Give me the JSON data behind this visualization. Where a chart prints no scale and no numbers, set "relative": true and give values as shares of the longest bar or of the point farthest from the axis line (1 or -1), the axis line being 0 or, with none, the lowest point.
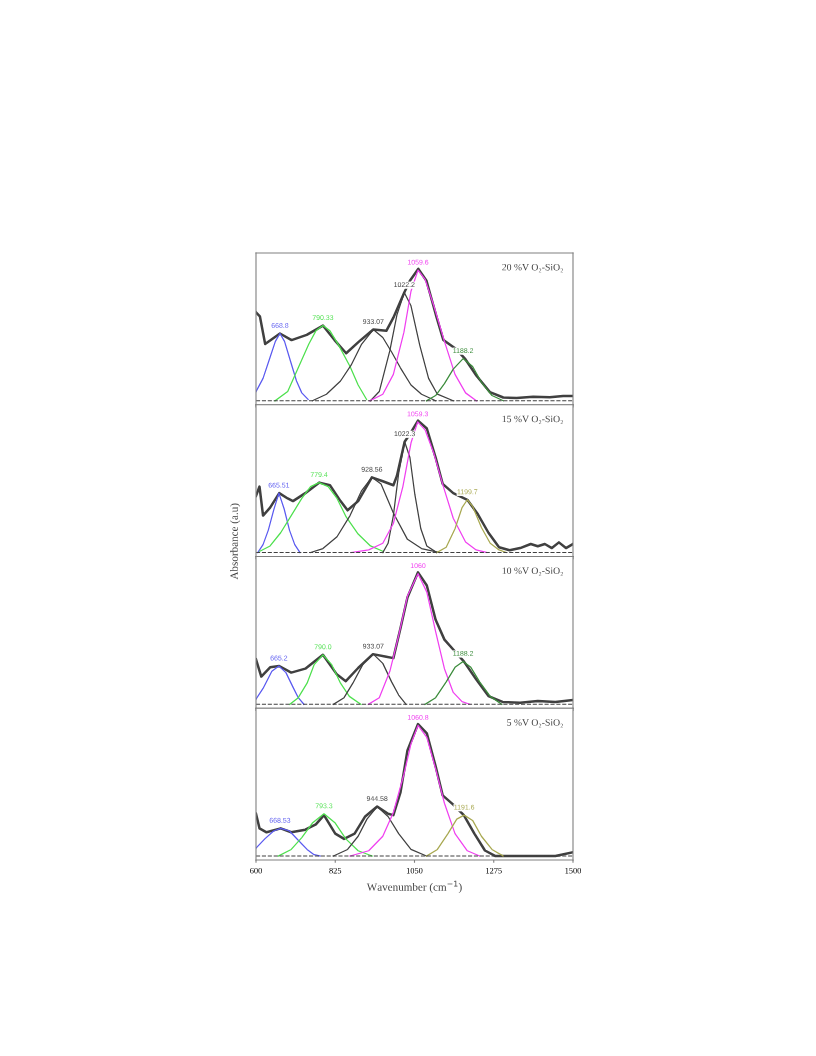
{
  "chart_data": [
    {
      "type": "line",
      "title": "20 %V O₂-SiO₂",
      "relative": true,
      "xlim": [
        600,
        1500
      ],
      "xticks": [
        600,
        825,
        1050,
        1275,
        1500
      ],
      "tick_labels": false,
      "ref_lines": [
        {
          "axis": "y",
          "value": 0,
          "color": "#404040",
          "line_style": "dashed"
        }
      ],
      "series": [
        {
          "color": "#404040",
          "x": [
            600,
            611,
            626,
            668,
            701,
            744,
            790,
            823,
            856,
            893,
            933,
            970,
            990,
            1021,
            1037,
            1061,
            1084,
            1113,
            1132,
            1169,
            1193,
            1226,
            1264,
            1302,
            1340,
            1387,
            1434,
            1472,
            1500
          ],
          "values": [
            0.67,
            0.64,
            0.43,
            0.51,
            0.46,
            0.5,
            0.57,
            0.46,
            0.36,
            0.45,
            0.54,
            0.53,
            0.63,
            0.82,
            0.91,
            1.0,
            0.91,
            0.63,
            0.46,
            0.39,
            0.32,
            0.19,
            0.066,
            0.025,
            0.022,
            0.03,
            0.027,
            0.037,
            0.037
          ]
        },
        {
          "color": "#5a5af0",
          "x": [
            600,
            620,
            640,
            655,
            668,
            681,
            698,
            715,
            730,
            748
          ],
          "values": [
            0.07,
            0.17,
            0.33,
            0.45,
            0.51,
            0.45,
            0.3,
            0.15,
            0.06,
            0.01
          ]
        },
        {
          "color": "#4ee04e",
          "x": [
            654,
            690,
            725,
            750,
            770,
            790,
            810,
            835,
            867,
            890,
            914
          ],
          "values": [
            0.0,
            0.07,
            0.28,
            0.43,
            0.53,
            0.57,
            0.53,
            0.42,
            0.26,
            0.12,
            0.01
          ]
        },
        {
          "color": "#404040",
          "x": [
            760,
            800,
            840,
            870,
            900,
            933,
            960,
            985,
            1010,
            1040,
            1070,
            1110
          ],
          "values": [
            0.0,
            0.05,
            0.15,
            0.27,
            0.43,
            0.54,
            0.48,
            0.37,
            0.25,
            0.12,
            0.05,
            0.0
          ]
        },
        {
          "color": "#404040",
          "x": [
            925,
            950,
            980,
            1000,
            1021,
            1040,
            1065,
            1090,
            1115,
            1160
          ],
          "values": [
            0.0,
            0.07,
            0.38,
            0.65,
            0.82,
            0.72,
            0.42,
            0.17,
            0.05,
            0.0
          ]
        },
        {
          "color": "#f040f0",
          "x": [
            923,
            960,
            990,
            1020,
            1040,
            1060,
            1080,
            1105,
            1135,
            1165,
            1195,
            1226
          ],
          "values": [
            0.0,
            0.05,
            0.2,
            0.52,
            0.83,
            0.99,
            0.92,
            0.72,
            0.45,
            0.2,
            0.06,
            0.0
          ]
        },
        {
          "color": "#3c8c3c",
          "x": [
            1084,
            1110,
            1135,
            1160,
            1188,
            1215,
            1240,
            1270,
            1302
          ],
          "values": [
            0.0,
            0.04,
            0.13,
            0.24,
            0.32,
            0.26,
            0.14,
            0.04,
            0.0
          ]
        }
      ],
      "annotations": [
        {
          "text": "668.8",
          "x": 668,
          "y": 0.51
        },
        {
          "text": "790.33",
          "x": 790,
          "y": 0.57
        },
        {
          "text": "933.07",
          "x": 933,
          "y": 0.54
        },
        {
          "text": "1022.2",
          "x": 1021,
          "y": 0.82
        },
        {
          "text": "1059.6",
          "x": 1060,
          "y": 0.99
        },
        {
          "text": "1188.2",
          "x": 1188,
          "y": 0.32
        }
      ]
    },
    {
      "type": "line",
      "title": "15 %V O₂-SiO₂",
      "ylabel": "Absorbance (a.u)",
      "relative": true,
      "xlim": [
        600,
        1500
      ],
      "xticks": [
        600,
        825,
        1050,
        1275,
        1500
      ],
      "tick_labels": false,
      "ref_lines": [
        {
          "axis": "y",
          "value": 0,
          "color": "#404040",
          "line_style": "dashed"
        }
      ],
      "series": [
        {
          "color": "#404040",
          "x": [
            600,
            610,
            620,
            640,
            666,
            690,
            705,
            740,
            780,
            810,
            840,
            860,
            890,
            929,
            960,
            990,
            1000,
            1022,
            1040,
            1060,
            1085,
            1110,
            1130,
            1160,
            1200,
            1230,
            1260,
            1290,
            1320,
            1350,
            1380,
            1400,
            1420,
            1440,
            1460,
            1480,
            1500
          ],
          "values": [
            0.43,
            0.5,
            0.28,
            0.34,
            0.45,
            0.41,
            0.39,
            0.45,
            0.53,
            0.51,
            0.39,
            0.32,
            0.39,
            0.57,
            0.54,
            0.51,
            0.58,
            0.84,
            0.91,
            1.0,
            0.94,
            0.72,
            0.52,
            0.45,
            0.4,
            0.29,
            0.15,
            0.04,
            0.017,
            0.034,
            0.065,
            0.048,
            0.065,
            0.034,
            0.077,
            0.034,
            0.065
          ]
        },
        {
          "color": "#5a5af0",
          "x": [
            605,
            620,
            635,
            650,
            665,
            680,
            695,
            710,
            725
          ],
          "values": [
            0.0,
            0.06,
            0.17,
            0.32,
            0.45,
            0.33,
            0.17,
            0.06,
            0.0
          ]
        },
        {
          "color": "#4ee04e",
          "x": [
            611,
            640,
            670,
            700,
            730,
            755,
            779,
            805,
            830,
            856,
            890,
            925,
            960
          ],
          "values": [
            0.01,
            0.05,
            0.15,
            0.28,
            0.41,
            0.5,
            0.53,
            0.5,
            0.41,
            0.27,
            0.14,
            0.05,
            0.01
          ]
        },
        {
          "color": "#404040",
          "x": [
            755,
            790,
            830,
            867,
            900,
            929,
            955,
            990,
            1030,
            1070,
            1120
          ],
          "values": [
            0.0,
            0.03,
            0.12,
            0.28,
            0.47,
            0.57,
            0.52,
            0.3,
            0.1,
            0.03,
            0.0
          ]
        },
        {
          "color": "#404040",
          "x": [
            960,
            975,
            990,
            1005,
            1022,
            1037,
            1051,
            1068,
            1085,
            1113
          ],
          "values": [
            0.0,
            0.07,
            0.28,
            0.6,
            0.84,
            0.72,
            0.44,
            0.18,
            0.05,
            0.0
          ]
        },
        {
          "color": "#f040f0",
          "x": [
            870,
            920,
            960,
            990,
            1017,
            1040,
            1059,
            1080,
            1105,
            1132,
            1160,
            1195,
            1225,
            1255
          ],
          "values": [
            0.0,
            0.02,
            0.07,
            0.22,
            0.5,
            0.83,
            0.99,
            0.93,
            0.75,
            0.5,
            0.26,
            0.08,
            0.02,
            0.0
          ]
        },
        {
          "color": "#a8a850",
          "x": [
            1113,
            1140,
            1165,
            1185,
            1200,
            1215,
            1240,
            1265,
            1290,
            1311
          ],
          "values": [
            0.0,
            0.04,
            0.18,
            0.34,
            0.4,
            0.35,
            0.19,
            0.07,
            0.02,
            0.0
          ]
        }
      ],
      "annotations": [
        {
          "text": "665.51",
          "x": 665,
          "y": 0.45
        },
        {
          "text": "779.4",
          "x": 779,
          "y": 0.53
        },
        {
          "text": "928.56",
          "x": 929,
          "y": 0.57
        },
        {
          "text": "1022.3",
          "x": 1022,
          "y": 0.84
        },
        {
          "text": "1059.3",
          "x": 1059,
          "y": 0.99
        },
        {
          "text": "1199.7",
          "x": 1200,
          "y": 0.4
        }
      ]
    },
    {
      "type": "line",
      "title": "10 %V O₂-SiO₂",
      "relative": true,
      "xlim": [
        600,
        1500
      ],
      "xticks": [
        600,
        825,
        1050,
        1275,
        1500
      ],
      "tick_labels": false,
      "ref_lines": [
        {
          "axis": "y",
          "value": 0,
          "color": "#404040",
          "line_style": "dashed"
        }
      ],
      "series": [
        {
          "color": "#404040",
          "x": [
            600,
            615,
            640,
            666,
            700,
            740,
            790,
            830,
            855,
            890,
            932,
            970,
            990,
            1010,
            1030,
            1060,
            1085,
            1110,
            1135,
            1165,
            1190,
            1225,
            1260,
            1300,
            1350,
            1400,
            1450,
            1500
          ],
          "values": [
            0.34,
            0.21,
            0.28,
            0.29,
            0.24,
            0.27,
            0.375,
            0.225,
            0.175,
            0.275,
            0.38,
            0.36,
            0.35,
            0.575,
            0.81,
            1.0,
            0.9,
            0.64,
            0.49,
            0.4,
            0.325,
            0.19,
            0.0625,
            0.018,
            0.0125,
            0.025,
            0.018,
            0.032
          ]
        },
        {
          "color": "#5a5af0",
          "x": [
            600,
            620,
            645,
            665,
            685,
            705,
            720,
            736
          ],
          "values": [
            0.04,
            0.12,
            0.25,
            0.29,
            0.24,
            0.13,
            0.05,
            0.0
          ]
        },
        {
          "color": "#4ee04e",
          "x": [
            696,
            720,
            745,
            765,
            790,
            815,
            840,
            865,
            898
          ],
          "values": [
            0.0,
            0.05,
            0.16,
            0.3,
            0.375,
            0.3,
            0.16,
            0.06,
            0.0
          ]
        },
        {
          "color": "#404040",
          "x": [
            820,
            850,
            875,
            905,
            933,
            960,
            985,
            1005,
            1026
          ],
          "values": [
            0.0,
            0.05,
            0.16,
            0.31,
            0.38,
            0.31,
            0.17,
            0.07,
            0.0
          ]
        },
        {
          "color": "#f040f0",
          "x": [
            919,
            950,
            980,
            1005,
            1030,
            1060,
            1085,
            1110,
            1135,
            1160,
            1185,
            1207
          ],
          "values": [
            0.0,
            0.05,
            0.25,
            0.52,
            0.82,
            0.99,
            0.85,
            0.55,
            0.27,
            0.09,
            0.02,
            0.0
          ]
        },
        {
          "color": "#3c8c3c",
          "x": [
            1080,
            1110,
            1140,
            1165,
            1188,
            1210,
            1235,
            1265,
            1298
          ],
          "values": [
            0.0,
            0.05,
            0.17,
            0.28,
            0.325,
            0.28,
            0.17,
            0.06,
            0.0
          ]
        }
      ],
      "annotations": [
        {
          "text": "665.2",
          "x": 665,
          "y": 0.29
        },
        {
          "text": "790.0",
          "x": 790,
          "y": 0.375
        },
        {
          "text": "933.07",
          "x": 933,
          "y": 0.38
        },
        {
          "text": "1060",
          "x": 1060,
          "y": 0.99
        },
        {
          "text": "1188.2",
          "x": 1188,
          "y": 0.325
        }
      ]
    },
    {
      "type": "line",
      "title": "5 %V O₂-SiO₂",
      "xlabel": "Wavenumber (cm$^{−1}$)",
      "relative": true,
      "xlim": [
        600,
        1500
      ],
      "xticks": [
        600,
        825,
        1050,
        1275,
        1500
      ],
      "tick_labels": "x",
      "ref_lines": [
        {
          "axis": "y",
          "value": 0,
          "color": "#404040",
          "line_style": "dashed"
        }
      ],
      "series": [
        {
          "color": "#404040",
          "x": [
            600,
            610,
            630,
            670,
            700,
            740,
            770,
            793,
            825,
            850,
            880,
            910,
            944,
            975,
            990,
            1010,
            1030,
            1060,
            1085,
            1110,
            1130,
            1160,
            1190,
            1220,
            1250,
            1280,
            1350,
            1450,
            1500
          ],
          "values": [
            0.32,
            0.21,
            0.18,
            0.21,
            0.18,
            0.2,
            0.24,
            0.31,
            0.17,
            0.13,
            0.17,
            0.3,
            0.375,
            0.32,
            0.31,
            0.48,
            0.8,
            1.0,
            0.93,
            0.68,
            0.46,
            0.39,
            0.31,
            0.17,
            0.042,
            0.0,
            0.0,
            0.0,
            0.028
          ]
        },
        {
          "color": "#5a5af0",
          "x": [
            600,
            625,
            650,
            670,
            695,
            720,
            745,
            765,
            782
          ],
          "values": [
            0.06,
            0.13,
            0.19,
            0.21,
            0.19,
            0.12,
            0.05,
            0.01,
            0.0
          ]
        },
        {
          "color": "#4ee04e",
          "x": [
            663,
            700,
            730,
            760,
            793,
            825,
            855,
            890,
            930
          ],
          "values": [
            0.0,
            0.05,
            0.14,
            0.25,
            0.32,
            0.25,
            0.13,
            0.04,
            0.0
          ]
        },
        {
          "color": "#404040",
          "x": [
            820,
            860,
            890,
            915,
            944,
            975,
            1005,
            1040,
            1084
          ],
          "values": [
            0.0,
            0.05,
            0.15,
            0.28,
            0.375,
            0.3,
            0.17,
            0.05,
            0.0
          ]
        },
        {
          "color": "#f040f0",
          "x": [
            867,
            920,
            960,
            990,
            1020,
            1040,
            1060,
            1085,
            1110,
            1135,
            1165,
            1200,
            1235
          ],
          "values": [
            0.0,
            0.04,
            0.15,
            0.33,
            0.62,
            0.85,
            0.99,
            0.9,
            0.66,
            0.4,
            0.17,
            0.04,
            0.0
          ]
        },
        {
          "color": "#a8a850",
          "x": [
            1084,
            1115,
            1145,
            1170,
            1191,
            1215,
            1240,
            1270,
            1302
          ],
          "values": [
            0.0,
            0.05,
            0.17,
            0.28,
            0.31,
            0.27,
            0.15,
            0.05,
            0.0
          ]
        }
      ],
      "annotations": [
        {
          "text": "668.53",
          "x": 668,
          "y": 0.21
        },
        {
          "text": "793.3",
          "x": 793,
          "y": 0.32
        },
        {
          "text": "944.58",
          "x": 944,
          "y": 0.375
        },
        {
          "text": "1060.8",
          "x": 1060,
          "y": 0.99
        },
        {
          "text": "1191.6",
          "x": 1191,
          "y": 0.31
        }
      ]
    }
  ]
}
